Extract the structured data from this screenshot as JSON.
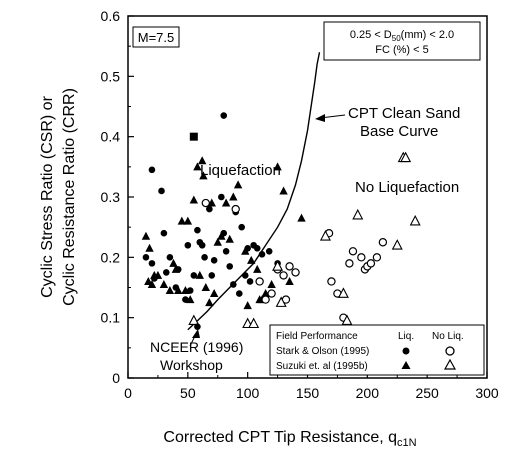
{
  "chart_data": {
    "type": "scatter",
    "xlabel_main": "Corrected CPT Tip Resistance, q",
    "xlabel_sub": "c1N",
    "ylabel_line1": "Cyclic Stress Ratio (CSR) or",
    "ylabel_line2": "Cyclic Resistance Ratio (CRR)",
    "xlim": [
      0,
      300
    ],
    "ylim": [
      0,
      0.6
    ],
    "xticks": [
      "0",
      "50",
      "100",
      "150",
      "200",
      "250",
      "300"
    ],
    "yticks": [
      "0",
      "0.1",
      "0.2",
      "0.3",
      "0.4",
      "0.5",
      "0.6"
    ],
    "grid": false,
    "magnitude_label": "M=7.5",
    "condition_line1_a": "0.25 < D",
    "condition_line1_sub": "50",
    "condition_line1_b": "(mm) < 2.0",
    "condition_line2": "FC (%) < 5",
    "annotations": {
      "liquefaction": "Liquefaction",
      "no_liquefaction": "No Liquefaction",
      "base_curve_line1": "CPT Clean Sand",
      "base_curve_line2": "Base Curve",
      "workshop_line1": "NCEER (1996)",
      "workshop_line2": "Workshop"
    },
    "legend": {
      "placement": "bottom-right",
      "header": "Field Performance",
      "col_liq": "Liq.",
      "col_noliq": "No Liq.",
      "rows": [
        "Stark & Olson (1995)",
        "Suzuki et. al (1995b)"
      ]
    },
    "base_curve": {
      "x": [
        50,
        58,
        66,
        75,
        85,
        95,
        105,
        115,
        125,
        133,
        140,
        145,
        150,
        153,
        156,
        158,
        160
      ],
      "y": [
        0.08,
        0.095,
        0.11,
        0.13,
        0.15,
        0.17,
        0.19,
        0.22,
        0.25,
        0.28,
        0.32,
        0.36,
        0.41,
        0.45,
        0.49,
        0.52,
        0.54
      ]
    },
    "series": [
      {
        "name": "Stark & Olson (1995)",
        "category": "Liq.",
        "marker": "filled-circle",
        "x": [
          20,
          28,
          15,
          20,
          30,
          32,
          40,
          48,
          52,
          55,
          58,
          60,
          62,
          64,
          70,
          72,
          78,
          80,
          82,
          85,
          88,
          90,
          93,
          95,
          100,
          102,
          105,
          108,
          112,
          118,
          125,
          42,
          50,
          22,
          35,
          68,
          98,
          80
        ],
        "y": [
          0.345,
          0.31,
          0.2,
          0.19,
          0.24,
          0.175,
          0.15,
          0.13,
          0.145,
          0.17,
          0.245,
          0.225,
          0.22,
          0.2,
          0.17,
          0.195,
          0.3,
          0.435,
          0.21,
          0.185,
          0.155,
          0.275,
          0.14,
          0.25,
          0.215,
          0.16,
          0.22,
          0.215,
          0.205,
          0.21,
          0.19,
          0.18,
          0.22,
          0.165,
          0.2,
          0.28,
          0.17,
          0.24
        ]
      },
      {
        "name": "Suzuki et. al (1995b)",
        "category": "Liq.",
        "marker": "filled-triangle",
        "x": [
          15,
          17,
          20,
          22,
          25,
          30,
          35,
          38,
          40,
          42,
          45,
          48,
          52,
          55,
          58,
          62,
          65,
          68,
          70,
          72,
          75,
          78,
          82,
          88,
          92,
          98,
          103,
          108,
          112,
          115,
          120,
          130,
          145,
          18,
          50,
          60,
          85,
          100,
          110,
          125,
          135,
          63
        ],
        "y": [
          0.235,
          0.16,
          0.155,
          0.17,
          0.17,
          0.155,
          0.145,
          0.19,
          0.18,
          0.145,
          0.26,
          0.145,
          0.13,
          0.295,
          0.35,
          0.36,
          0.15,
          0.125,
          0.29,
          0.14,
          0.225,
          0.235,
          0.29,
          0.3,
          0.32,
          0.21,
          0.195,
          0.18,
          0.13,
          0.14,
          0.155,
          0.31,
          0.265,
          0.215,
          0.26,
          0.17,
          0.23,
          0.12,
          0.13,
          0.35,
          0.16,
          0.335
        ]
      },
      {
        "name": "Stark & Olson (1995)",
        "category": "No Liq.",
        "marker": "open-circle",
        "x": [
          65,
          90,
          110,
          115,
          120,
          125,
          130,
          132,
          135,
          140,
          168,
          170,
          175,
          180,
          185,
          188,
          195,
          198,
          200,
          203,
          208,
          213
        ],
        "y": [
          0.29,
          0.28,
          0.16,
          0.13,
          0.14,
          0.18,
          0.17,
          0.13,
          0.185,
          0.175,
          0.24,
          0.16,
          0.14,
          0.1,
          0.19,
          0.21,
          0.2,
          0.18,
          0.185,
          0.19,
          0.2,
          0.225
        ]
      },
      {
        "name": "Suzuki et. al (1995b)",
        "category": "No Liq.",
        "marker": "open-triangle",
        "x": [
          55,
          100,
          105,
          125,
          128,
          165,
          180,
          183,
          192,
          225,
          230,
          232,
          240
        ],
        "y": [
          0.095,
          0.09,
          0.09,
          0.185,
          0.125,
          0.235,
          0.14,
          0.095,
          0.27,
          0.22,
          0.365,
          0.365,
          0.26
        ]
      }
    ],
    "highlight_points": [
      {
        "x": 55,
        "y": 0.4,
        "marker": "filled-square"
      },
      {
        "x": 58,
        "y": 0.085,
        "marker": "filled-circle"
      }
    ]
  }
}
